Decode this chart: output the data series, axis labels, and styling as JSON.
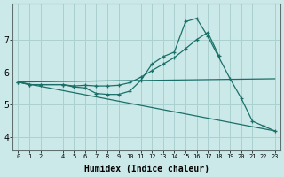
{
  "bg_color": "#cce9e9",
  "grid_color": "#aad0d0",
  "line_color": "#1a7068",
  "xlabel": "Humidex (Indice chaleur)",
  "xlim": [
    -0.5,
    23.5
  ],
  "ylim": [
    3.6,
    8.1
  ],
  "yticks": [
    4,
    5,
    6,
    7
  ],
  "xticks": [
    0,
    1,
    2,
    4,
    5,
    6,
    7,
    8,
    9,
    10,
    11,
    12,
    13,
    14,
    15,
    16,
    17,
    18,
    19,
    20,
    21,
    22,
    23
  ],
  "line1_x": [
    0,
    1,
    2,
    4,
    5,
    6,
    7,
    8,
    9,
    10,
    11,
    12,
    13,
    14,
    15,
    16,
    17,
    19,
    20,
    21,
    22,
    23
  ],
  "line1_y": [
    5.7,
    5.62,
    5.62,
    5.62,
    5.55,
    5.52,
    5.35,
    5.32,
    5.32,
    5.42,
    5.75,
    6.25,
    6.48,
    6.62,
    7.55,
    7.65,
    7.1,
    5.8,
    5.2,
    4.5,
    4.35,
    4.2
  ],
  "line2_x": [
    0,
    1,
    2,
    4,
    5,
    6,
    7,
    8,
    9,
    10,
    11,
    12,
    13,
    14,
    15,
    16,
    17,
    18
  ],
  "line2_y": [
    5.7,
    5.62,
    5.62,
    5.62,
    5.58,
    5.6,
    5.58,
    5.58,
    5.6,
    5.68,
    5.85,
    6.05,
    6.25,
    6.45,
    6.72,
    7.0,
    7.22,
    6.5
  ],
  "line3_x": [
    0,
    23
  ],
  "line3_y": [
    5.7,
    5.8
  ],
  "line4_x": [
    0,
    23
  ],
  "line4_y": [
    5.7,
    4.2
  ]
}
